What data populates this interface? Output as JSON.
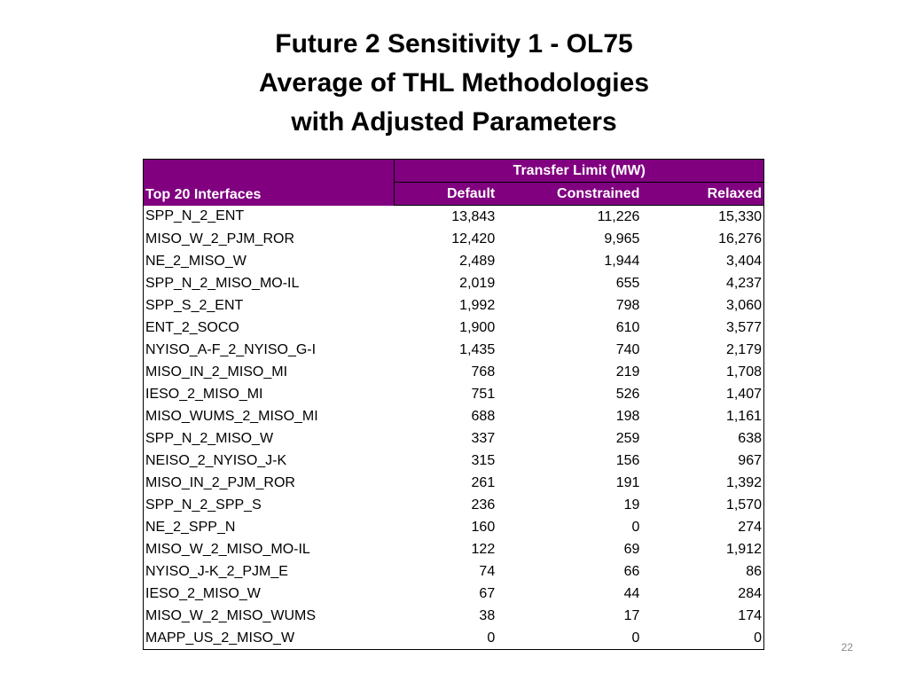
{
  "title": {
    "line1": "Future 2 Sensitivity 1 - OL75",
    "line2": "Average of THL Methodologies",
    "line3": "with Adjusted Parameters"
  },
  "table": {
    "group_header": "Transfer Limit (MW)",
    "columns": [
      "Top 20 Interfaces",
      "Default",
      "Constrained",
      "Relaxed"
    ],
    "rows": [
      [
        "SPP_N_2_ENT",
        "13,843",
        "11,226",
        "15,330"
      ],
      [
        "MISO_W_2_PJM_ROR",
        "12,420",
        "9,965",
        "16,276"
      ],
      [
        "NE_2_MISO_W",
        "2,489",
        "1,944",
        "3,404"
      ],
      [
        "SPP_N_2_MISO_MO-IL",
        "2,019",
        "655",
        "4,237"
      ],
      [
        "SPP_S_2_ENT",
        "1,992",
        "798",
        "3,060"
      ],
      [
        "ENT_2_SOCO",
        "1,900",
        "610",
        "3,577"
      ],
      [
        "NYISO_A-F_2_NYISO_G-I",
        "1,435",
        "740",
        "2,179"
      ],
      [
        "MISO_IN_2_MISO_MI",
        "768",
        "219",
        "1,708"
      ],
      [
        "IESO_2_MISO_MI",
        "751",
        "526",
        "1,407"
      ],
      [
        "MISO_WUMS_2_MISO_MI",
        "688",
        "198",
        "1,161"
      ],
      [
        "SPP_N_2_MISO_W",
        "337",
        "259",
        "638"
      ],
      [
        "NEISO_2_NYISO_J-K",
        "315",
        "156",
        "967"
      ],
      [
        "MISO_IN_2_PJM_ROR",
        "261",
        "191",
        "1,392"
      ],
      [
        "SPP_N_2_SPP_S",
        "236",
        "19",
        "1,570"
      ],
      [
        "NE_2_SPP_N",
        "160",
        "0",
        "274"
      ],
      [
        "MISO_W_2_MISO_MO-IL",
        "122",
        "69",
        "1,912"
      ],
      [
        "NYISO_J-K_2_PJM_E",
        "74",
        "66",
        "86"
      ],
      [
        "IESO_2_MISO_W",
        "67",
        "44",
        "284"
      ],
      [
        "MISO_W_2_MISO_WUMS",
        "38",
        "17",
        "174"
      ],
      [
        "MAPP_US_2_MISO_W",
        "0",
        "0",
        "0"
      ]
    ]
  },
  "page_number": "22",
  "colors": {
    "header_background": "#800080",
    "header_text": "#ffffff",
    "page_number": "#8a8a8a"
  }
}
